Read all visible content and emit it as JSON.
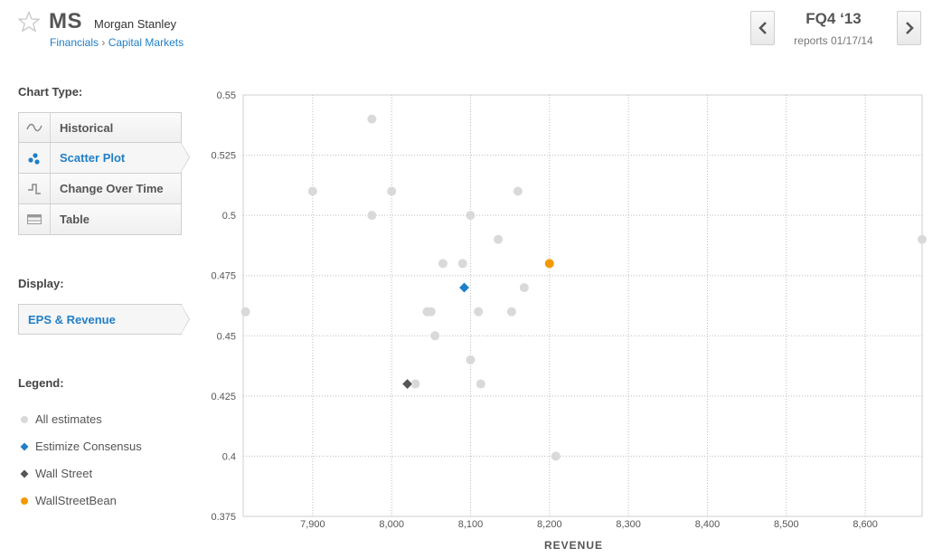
{
  "header": {
    "ticker": "MS",
    "company": "Morgan Stanley",
    "sector": "Financials",
    "separator": "›",
    "industry": "Capital Markets",
    "period": "FQ4 ‘13",
    "reports": "reports 01/17/14",
    "prev_icon": "chevron-left-icon",
    "next_icon": "chevron-right-icon"
  },
  "sidebar": {
    "chart_type_title": "Chart Type:",
    "chart_types": [
      {
        "label": "Historical",
        "icon": "wave-icon",
        "active": false
      },
      {
        "label": "Scatter Plot",
        "icon": "scatter-icon",
        "active": true
      },
      {
        "label": "Change Over Time",
        "icon": "step-icon",
        "active": false
      },
      {
        "label": "Table",
        "icon": "table-icon",
        "active": false
      }
    ],
    "display_title": "Display:",
    "display_value": "EPS & Revenue",
    "legend_title": "Legend:",
    "legend": [
      {
        "label": "All estimates",
        "color": "#cfcfcf",
        "shape": "circle"
      },
      {
        "label": "Estimize Consensus",
        "color": "#1f7fc7",
        "shape": "diamond"
      },
      {
        "label": "Wall Street",
        "color": "#555555",
        "shape": "diamond"
      },
      {
        "label": "WallStreetBean",
        "color": "#f29a00",
        "shape": "circle"
      }
    ]
  },
  "chart_data": {
    "type": "scatter",
    "xlabel": "REVENUE",
    "ylabel": "",
    "xlim": [
      7812,
      8672
    ],
    "ylim": [
      0.375,
      0.55
    ],
    "x_ticks": [
      "7,900",
      "8,000",
      "8,100",
      "8,200",
      "8,300",
      "8,400",
      "8,500",
      "8,600"
    ],
    "x_tick_values": [
      7900,
      8000,
      8100,
      8200,
      8300,
      8400,
      8500,
      8600
    ],
    "y_ticks": [
      "0.55",
      "0.525",
      "0.5",
      "0.475",
      "0.45",
      "0.425",
      "0.4",
      "0.375"
    ],
    "y_tick_values": [
      0.55,
      0.525,
      0.5,
      0.475,
      0.45,
      0.425,
      0.4,
      0.375
    ],
    "grid": true,
    "series": [
      {
        "name": "All estimates",
        "color": "#d9d9d9",
        "shape": "circle",
        "points": [
          [
            7975,
            0.54
          ],
          [
            7900,
            0.51
          ],
          [
            8000,
            0.51
          ],
          [
            8160,
            0.51
          ],
          [
            7975,
            0.5
          ],
          [
            8100,
            0.5
          ],
          [
            8135,
            0.49
          ],
          [
            8672,
            0.49
          ],
          [
            8065,
            0.48
          ],
          [
            8090,
            0.48
          ],
          [
            8168,
            0.47
          ],
          [
            7815,
            0.46
          ],
          [
            8045,
            0.46
          ],
          [
            8050,
            0.46
          ],
          [
            8110,
            0.46
          ],
          [
            8152,
            0.46
          ],
          [
            8055,
            0.45
          ],
          [
            8100,
            0.44
          ],
          [
            8030,
            0.43
          ],
          [
            8113,
            0.43
          ],
          [
            8208,
            0.4
          ]
        ]
      },
      {
        "name": "Estimize Consensus",
        "color": "#1f7fc7",
        "shape": "diamond",
        "points": [
          [
            8092,
            0.47
          ]
        ]
      },
      {
        "name": "Wall Street",
        "color": "#555555",
        "shape": "diamond",
        "points": [
          [
            8020,
            0.43
          ]
        ]
      },
      {
        "name": "WallStreetBean",
        "color": "#f29a00",
        "shape": "circle",
        "points": [
          [
            8200,
            0.48
          ]
        ]
      }
    ]
  }
}
